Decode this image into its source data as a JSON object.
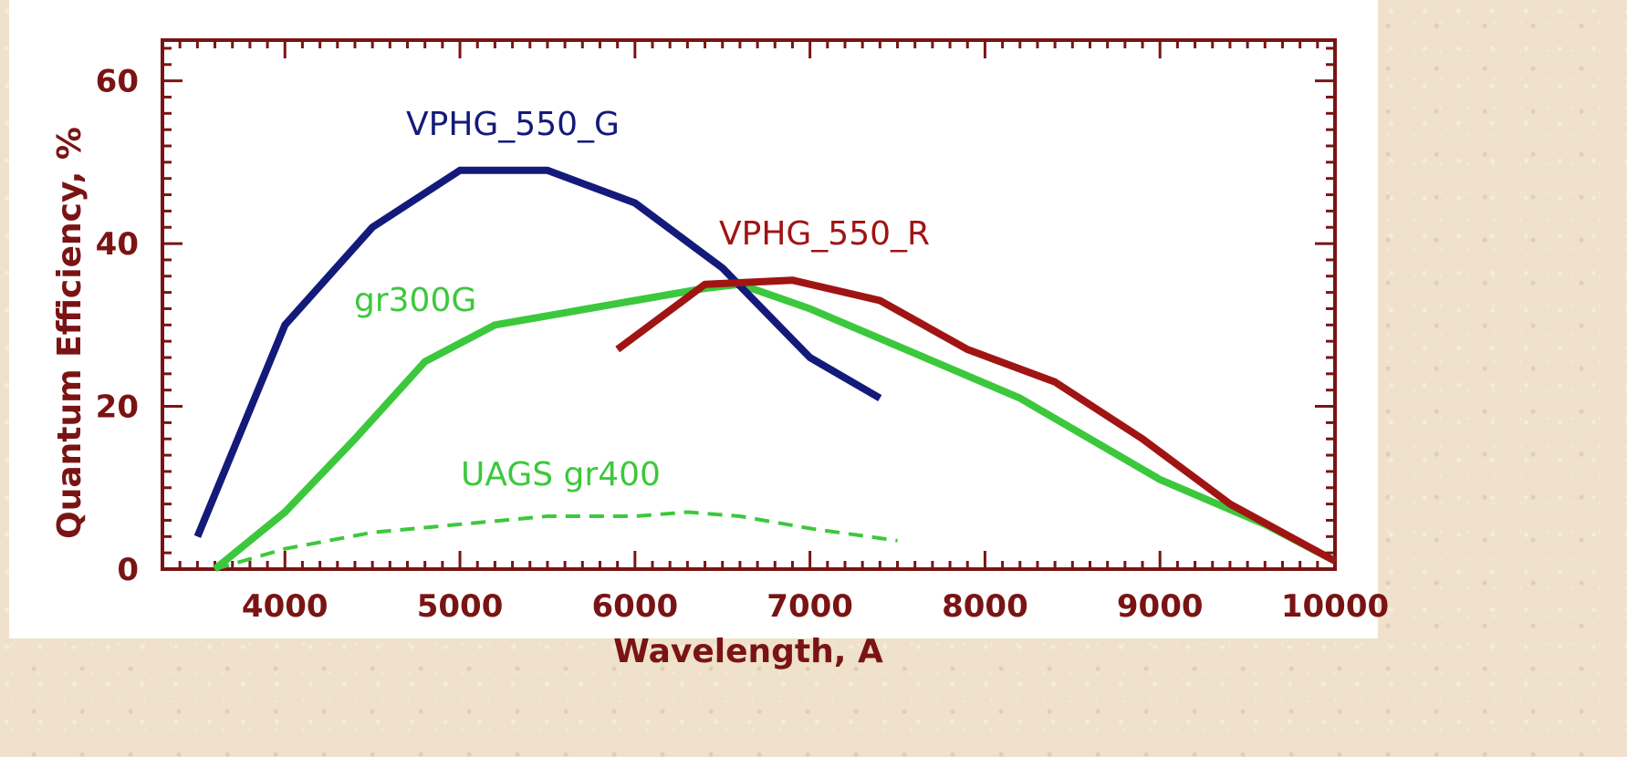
{
  "colors": {
    "axis": "#7a1414",
    "background": "#efe1cc",
    "plot_background": "#ffffff"
  },
  "chart_data": {
    "type": "line",
    "title": "",
    "xlabel": "Wavelength, A",
    "ylabel": "Quantum Efficiency, %",
    "xlim": [
      3300,
      10000
    ],
    "ylim": [
      0,
      65
    ],
    "x_ticks": [
      4000,
      5000,
      6000,
      7000,
      8000,
      9000,
      10000
    ],
    "y_ticks": [
      0,
      20,
      40,
      60
    ],
    "grid": false,
    "legend": "none (series labeled directly on plot)",
    "series": [
      {
        "name": "VPHG_550_G",
        "color": "#141a7a",
        "style": "solid",
        "x": [
          3500,
          4000,
          4500,
          5000,
          5500,
          6000,
          6500,
          7000,
          7400
        ],
        "y": [
          4,
          30,
          42,
          49,
          49,
          45,
          37,
          26,
          21
        ]
      },
      {
        "name": "VPHG_550_R",
        "color": "#a01414",
        "style": "solid",
        "x": [
          5900,
          6400,
          6900,
          7400,
          7900,
          8400,
          8900,
          9400,
          10000
        ],
        "y": [
          27,
          35,
          35.5,
          33,
          27,
          23,
          16,
          8,
          1
        ]
      },
      {
        "name": "gr300G",
        "color": "#3cc83c",
        "style": "solid",
        "x": [
          3600,
          4000,
          4400,
          4800,
          5200,
          5600,
          6000,
          6400,
          6600,
          7000,
          7600,
          8200,
          9000,
          9600,
          10000
        ],
        "y": [
          0,
          7,
          16,
          25.5,
          30,
          31.5,
          33,
          34.5,
          35,
          32,
          26.5,
          21,
          11,
          5.5,
          1
        ]
      },
      {
        "name": "UAGS gr400",
        "color": "#3cc83c",
        "style": "dashed",
        "x": [
          3600,
          4000,
          4500,
          5000,
          5500,
          6000,
          6300,
          6600,
          7000,
          7500
        ],
        "y": [
          0,
          2.5,
          4.5,
          5.5,
          6.5,
          6.5,
          7,
          6.5,
          5,
          3.5
        ]
      }
    ]
  }
}
